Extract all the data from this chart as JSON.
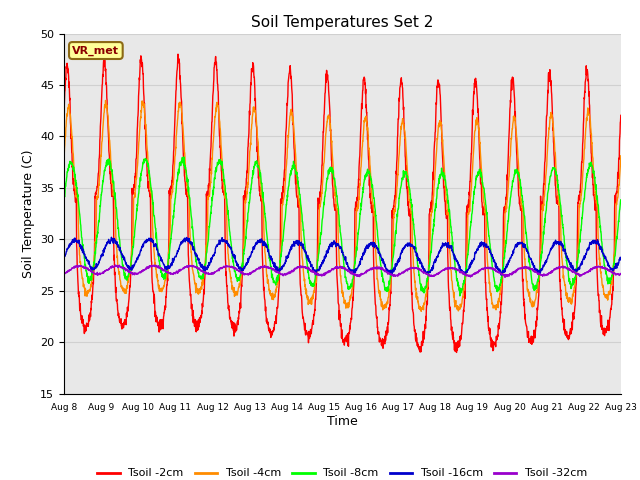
{
  "title": "Soil Temperatures Set 2",
  "xlabel": "Time",
  "ylabel": "Soil Temperature (C)",
  "ylim": [
    15,
    50
  ],
  "annotation_text": "VR_met",
  "series_colors": {
    "Tsoil -2cm": "#ff0000",
    "Tsoil -4cm": "#ff8c00",
    "Tsoil -8cm": "#00ff00",
    "Tsoil -16cm": "#0000cc",
    "Tsoil -32cm": "#9900cc"
  },
  "grid_color": "#d0d0d0",
  "plot_bg_color": "#e8e8e8",
  "fig_bg_color": "#ffffff",
  "yticks": [
    15,
    20,
    25,
    30,
    35,
    40,
    45,
    50
  ],
  "xtick_labels": [
    "Aug 8",
    "Aug 9",
    "Aug 10",
    "Aug 11",
    "Aug 12",
    "Aug 13",
    "Aug 14",
    "Aug 15",
    "Aug 16",
    "Aug 17",
    "Aug 18",
    "Aug 19",
    "Aug 20",
    "Aug 21",
    "Aug 22",
    "Aug 23"
  ]
}
